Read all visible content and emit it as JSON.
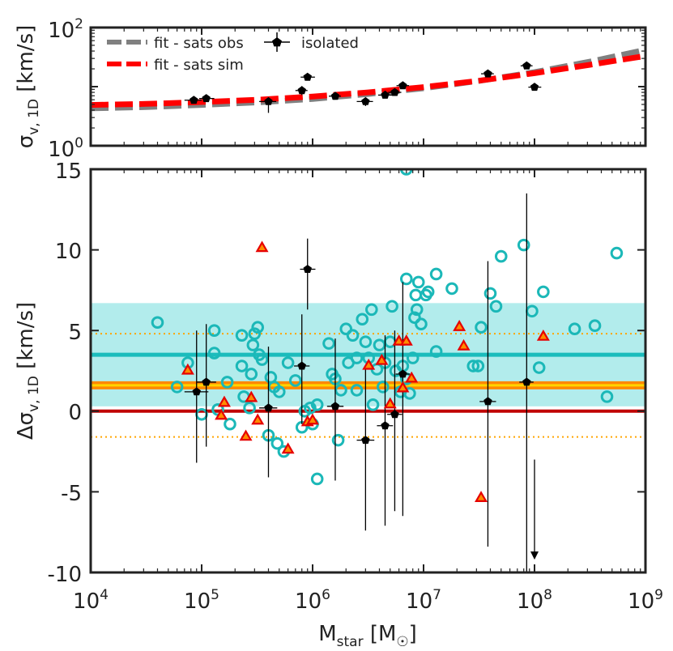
{
  "chart_data": [
    {
      "type": "line",
      "panel": "top",
      "xscale": "log",
      "yscale": "log",
      "xlim": [
        10000,
        1000000000
      ],
      "ylim": [
        1,
        100
      ],
      "ylabel_main": "σ",
      "ylabel_sub": "v, 1D",
      "ylabel_unit": " [km/s]",
      "yticks": [
        {
          "value": 1,
          "label_base": "10",
          "label_exp": "0"
        },
        {
          "value": 100,
          "label_base": "10",
          "label_exp": "2"
        }
      ],
      "legend_position": "top-left",
      "series": [
        {
          "name": "fit - sats obs",
          "style": "dashed",
          "color": "#808080",
          "x": [
            10000,
            31623,
            100000,
            316228,
            1000000,
            3162278,
            10000000,
            31622777,
            100000000,
            316227766,
            1000000000
          ],
          "y": [
            4.3,
            4.5,
            4.9,
            5.4,
            6.2,
            7.5,
            9.4,
            12.5,
            17.6,
            26.5,
            42
          ]
        },
        {
          "name": "fit - sats sim",
          "style": "dashed",
          "color": "#ff0000",
          "x": [
            10000,
            31623,
            100000,
            316228,
            1000000,
            3162278,
            10000000,
            31622777,
            100000000,
            316227766,
            1000000000
          ],
          "y": [
            4.9,
            5.1,
            5.5,
            6.0,
            6.8,
            8.0,
            9.8,
            12.6,
            16.9,
            23.4,
            33
          ]
        },
        {
          "name": "isolated",
          "style": "points-errorbars",
          "color": "#000000",
          "points": [
            {
              "x": 85000,
              "y": 5.9,
              "ylo": 5.3,
              "yhi": 6.6,
              "xlo": 70000,
              "xhi": 100000
            },
            {
              "x": 110000,
              "y": 6.3,
              "ylo": 5.8,
              "yhi": 6.9,
              "xlo": 95000,
              "xhi": 130000
            },
            {
              "x": 400000,
              "y": 5.6,
              "ylo": 3.6,
              "yhi": 6.6,
              "xlo": 330000,
              "xhi": 470000
            },
            {
              "x": 800000,
              "y": 8.6,
              "ylo": 7.2,
              "yhi": 10.2,
              "xlo": 700000,
              "xhi": 900000
            },
            {
              "x": 900000,
              "y": 14.5,
              "ylo": 13.2,
              "yhi": 15.9,
              "xlo": 780000,
              "xhi": 1050000
            },
            {
              "x": 1600000,
              "y": 6.9,
              "ylo": 6.1,
              "yhi": 7.7,
              "xlo": 1400000,
              "xhi": 1800000
            },
            {
              "x": 3000000,
              "y": 5.6,
              "ylo": 4.7,
              "yhi": 6.5,
              "xlo": 2500000,
              "xhi": 3500000
            },
            {
              "x": 4500000,
              "y": 7.2,
              "ylo": 6.5,
              "yhi": 8.0,
              "xlo": 3900000,
              "xhi": 5200000
            },
            {
              "x": 5500000,
              "y": 8.0,
              "ylo": 7.2,
              "yhi": 8.8,
              "xlo": 4800000,
              "xhi": 6300000
            },
            {
              "x": 6500000,
              "y": 10.4,
              "ylo": 9.4,
              "yhi": 11.4,
              "xlo": 5700000,
              "xhi": 7400000
            },
            {
              "x": 38000000,
              "y": 16.5,
              "ylo": 15.6,
              "yhi": 17.4,
              "xlo": 33000000,
              "xhi": 43000000
            },
            {
              "x": 85000000,
              "y": 22.5,
              "ylo": 21.3,
              "yhi": 23.8,
              "xlo": 75000000,
              "xhi": 96000000
            },
            {
              "x": 100000000,
              "y": 9.8,
              "ylo": 9.3,
              "yhi": 10.4,
              "xlo": 88000000,
              "xhi": 115000000
            }
          ]
        }
      ]
    },
    {
      "type": "scatter",
      "panel": "bottom",
      "xscale": "log",
      "xlim": [
        10000,
        1000000000
      ],
      "ylim": [
        -10,
        15
      ],
      "xlabel_main": "M",
      "xlabel_sub": "star",
      "xlabel_unit_open": " [M",
      "xlabel_unit_close": "]",
      "ylabel_main": "Δσ",
      "ylabel_sub": "v, 1D",
      "ylabel_unit": " [km/s]",
      "yticks": [
        -10,
        -5,
        0,
        5,
        10,
        15
      ],
      "xticks": [
        {
          "value": 10000,
          "label_base": "10",
          "label_exp": "4"
        },
        {
          "value": 100000,
          "label_base": "10",
          "label_exp": "5"
        },
        {
          "value": 1000000,
          "label_base": "10",
          "label_exp": "6"
        },
        {
          "value": 10000000,
          "label_base": "10",
          "label_exp": "7"
        },
        {
          "value": 100000000,
          "label_base": "10",
          "label_exp": "8"
        },
        {
          "value": 1000000000,
          "label_base": "10",
          "label_exp": "9"
        }
      ],
      "bands": [
        {
          "name": "cyan-band",
          "ymin": 0.3,
          "ymax": 6.7,
          "color": "#b2ecec"
        }
      ],
      "hlines": [
        {
          "name": "cyan-mean",
          "y": 3.5,
          "color": "#1bbcbc",
          "width": 5,
          "style": "solid"
        },
        {
          "name": "orange-mean",
          "y": 1.6,
          "color": "#ff8800",
          "width": 10,
          "style": "solid"
        },
        {
          "name": "yellow-center",
          "y": 1.6,
          "color": "#ffd400",
          "width": 3,
          "style": "solid"
        },
        {
          "name": "red-zero",
          "y": 0,
          "color": "#c00000",
          "width": 4,
          "style": "solid"
        },
        {
          "name": "orange-upper",
          "y": 4.8,
          "color": "#ffa500",
          "width": 2,
          "style": "dotted"
        },
        {
          "name": "orange-lower",
          "y": -1.6,
          "color": "#ffa500",
          "width": 2,
          "style": "dotted"
        }
      ],
      "series": [
        {
          "name": "",
          "marker": "circle",
          "color": "#1bb8b8",
          "points": [
            [
              40000,
              5.5
            ],
            [
              60000,
              1.5
            ],
            [
              75000,
              3.0
            ],
            [
              100000,
              -0.2
            ],
            [
              130000,
              5.0
            ],
            [
              130000,
              3.6
            ],
            [
              140000,
              0.1
            ],
            [
              170000,
              1.8
            ],
            [
              180000,
              -0.8
            ],
            [
              230000,
              4.7
            ],
            [
              230000,
              2.8
            ],
            [
              240000,
              0.9
            ],
            [
              270000,
              0.2
            ],
            [
              280000,
              2.3
            ],
            [
              290000,
              4.1
            ],
            [
              300000,
              4.8
            ],
            [
              320000,
              5.2
            ],
            [
              330000,
              3.5
            ],
            [
              350000,
              3.2
            ],
            [
              400000,
              -1.5
            ],
            [
              420000,
              2.1
            ],
            [
              450000,
              1.5
            ],
            [
              480000,
              -2.0
            ],
            [
              500000,
              1.2
            ],
            [
              550000,
              -2.5
            ],
            [
              600000,
              3.0
            ],
            [
              700000,
              1.9
            ],
            [
              800000,
              -1.0
            ],
            [
              850000,
              0.0
            ],
            [
              950000,
              0.2
            ],
            [
              1000000,
              -0.8
            ],
            [
              1100000,
              0.4
            ],
            [
              1100000,
              -4.2
            ],
            [
              1400000,
              4.2
            ],
            [
              1500000,
              2.3
            ],
            [
              1600000,
              2.0
            ],
            [
              1700000,
              -1.8
            ],
            [
              1800000,
              1.3
            ],
            [
              2000000,
              5.1
            ],
            [
              2100000,
              3.0
            ],
            [
              2300000,
              4.7
            ],
            [
              2500000,
              3.3
            ],
            [
              2500000,
              1.3
            ],
            [
              2800000,
              5.7
            ],
            [
              3000000,
              4.3
            ],
            [
              3200000,
              3.3
            ],
            [
              3400000,
              6.3
            ],
            [
              3500000,
              0.4
            ],
            [
              3800000,
              2.6
            ],
            [
              4000000,
              4.1
            ],
            [
              4300000,
              1.5
            ],
            [
              4500000,
              3.0
            ],
            [
              5000000,
              4.3
            ],
            [
              5200000,
              6.5
            ],
            [
              5600000,
              2.5
            ],
            [
              6200000,
              1.2
            ],
            [
              6500000,
              2.8
            ],
            [
              7000000,
              8.2
            ],
            [
              7000000,
              2.0
            ],
            [
              7500000,
              1.1
            ],
            [
              8000000,
              3.3
            ],
            [
              8300000,
              5.8
            ],
            [
              8500000,
              7.2
            ],
            [
              8700000,
              6.3
            ],
            [
              9000000,
              8.0
            ],
            [
              9500000,
              5.4
            ],
            [
              10500000,
              7.2
            ],
            [
              11000000,
              7.4
            ],
            [
              13000000,
              8.5
            ],
            [
              13000000,
              3.7
            ],
            [
              18000000,
              7.6
            ],
            [
              28000000,
              2.8
            ],
            [
              31000000,
              2.8
            ],
            [
              33000000,
              5.2
            ],
            [
              40000000,
              7.3
            ],
            [
              45000000,
              6.5
            ],
            [
              50000000,
              9.6
            ],
            [
              80000000,
              10.3
            ],
            [
              95000000,
              6.2
            ],
            [
              110000000,
              2.7
            ],
            [
              120000000,
              7.4
            ],
            [
              230000000,
              5.1
            ],
            [
              350000000,
              5.3
            ],
            [
              450000000,
              0.9
            ],
            [
              550000000,
              9.8
            ],
            [
              7000000,
              15.0
            ]
          ]
        },
        {
          "name": "",
          "marker": "triangle",
          "color": "#ff8c00",
          "edge": "#e60000",
          "points": [
            [
              75000,
              2.5
            ],
            [
              150000,
              -0.3
            ],
            [
              160000,
              0.5
            ],
            [
              250000,
              -1.6
            ],
            [
              280000,
              0.8
            ],
            [
              320000,
              -0.6
            ],
            [
              350000,
              10.1
            ],
            [
              600000,
              -2.4
            ],
            [
              900000,
              -0.7
            ],
            [
              1000000,
              -0.6
            ],
            [
              3200000,
              2.8
            ],
            [
              4200000,
              3.1
            ],
            [
              5000000,
              0.4
            ],
            [
              6000000,
              4.3
            ],
            [
              6500000,
              1.4
            ],
            [
              7000000,
              4.3
            ],
            [
              7800000,
              2.0
            ],
            [
              21000000,
              5.2
            ],
            [
              23000000,
              4.0
            ],
            [
              33000000,
              -5.4
            ],
            [
              120000000,
              4.6
            ]
          ]
        },
        {
          "name": "",
          "marker": "pentagon-errorbars",
          "color": "#000000",
          "points": [
            {
              "x": 90000,
              "y": 1.2,
              "ylo": -3.2,
              "yhi": 5.0,
              "xlo": 70000,
              "xhi": 115000
            },
            {
              "x": 110000,
              "y": 1.8,
              "ylo": -2.2,
              "yhi": 5.4,
              "xlo": 90000,
              "xhi": 135000
            },
            {
              "x": 400000,
              "y": 0.2,
              "ylo": -4.1,
              "yhi": 4.0,
              "xlo": 330000,
              "xhi": 480000
            },
            {
              "x": 800000,
              "y": 2.8,
              "ylo": -0.8,
              "yhi": 6.0,
              "xlo": 680000,
              "xhi": 940000
            },
            {
              "x": 900000,
              "y": 8.8,
              "ylo": 6.3,
              "yhi": 10.7,
              "xlo": 770000,
              "xhi": 1060000
            },
            {
              "x": 1600000,
              "y": 0.3,
              "ylo": -4.3,
              "yhi": 4.5,
              "xlo": 1350000,
              "xhi": 1900000
            },
            {
              "x": 3000000,
              "y": -1.8,
              "ylo": -7.4,
              "yhi": 2.6,
              "xlo": 2500000,
              "xhi": 3600000
            },
            {
              "x": 4500000,
              "y": -0.9,
              "ylo": -7.1,
              "yhi": 4.7,
              "xlo": 3800000,
              "xhi": 5300000
            },
            {
              "x": 5500000,
              "y": -0.2,
              "ylo": -6.2,
              "yhi": 5.0,
              "xlo": 4700000,
              "xhi": 6400000
            },
            {
              "x": 6500000,
              "y": 2.3,
              "ylo": -6.5,
              "yhi": 8.0,
              "xlo": 5600000,
              "xhi": 7500000
            },
            {
              "x": 38000000,
              "y": 0.6,
              "ylo": -8.4,
              "yhi": 9.3,
              "xlo": 32000000,
              "xhi": 45000000
            },
            {
              "x": 85000000,
              "y": 1.8,
              "ylo": -10,
              "yhi": 13.5,
              "xlo": 73000000,
              "xhi": 98000000
            }
          ]
        },
        {
          "name": "",
          "marker": "upper-limit-arrow",
          "color": "#000000",
          "points": [
            {
              "x": 100000000,
              "y": -9.0,
              "yfrom": -3.0
            }
          ]
        }
      ]
    }
  ]
}
